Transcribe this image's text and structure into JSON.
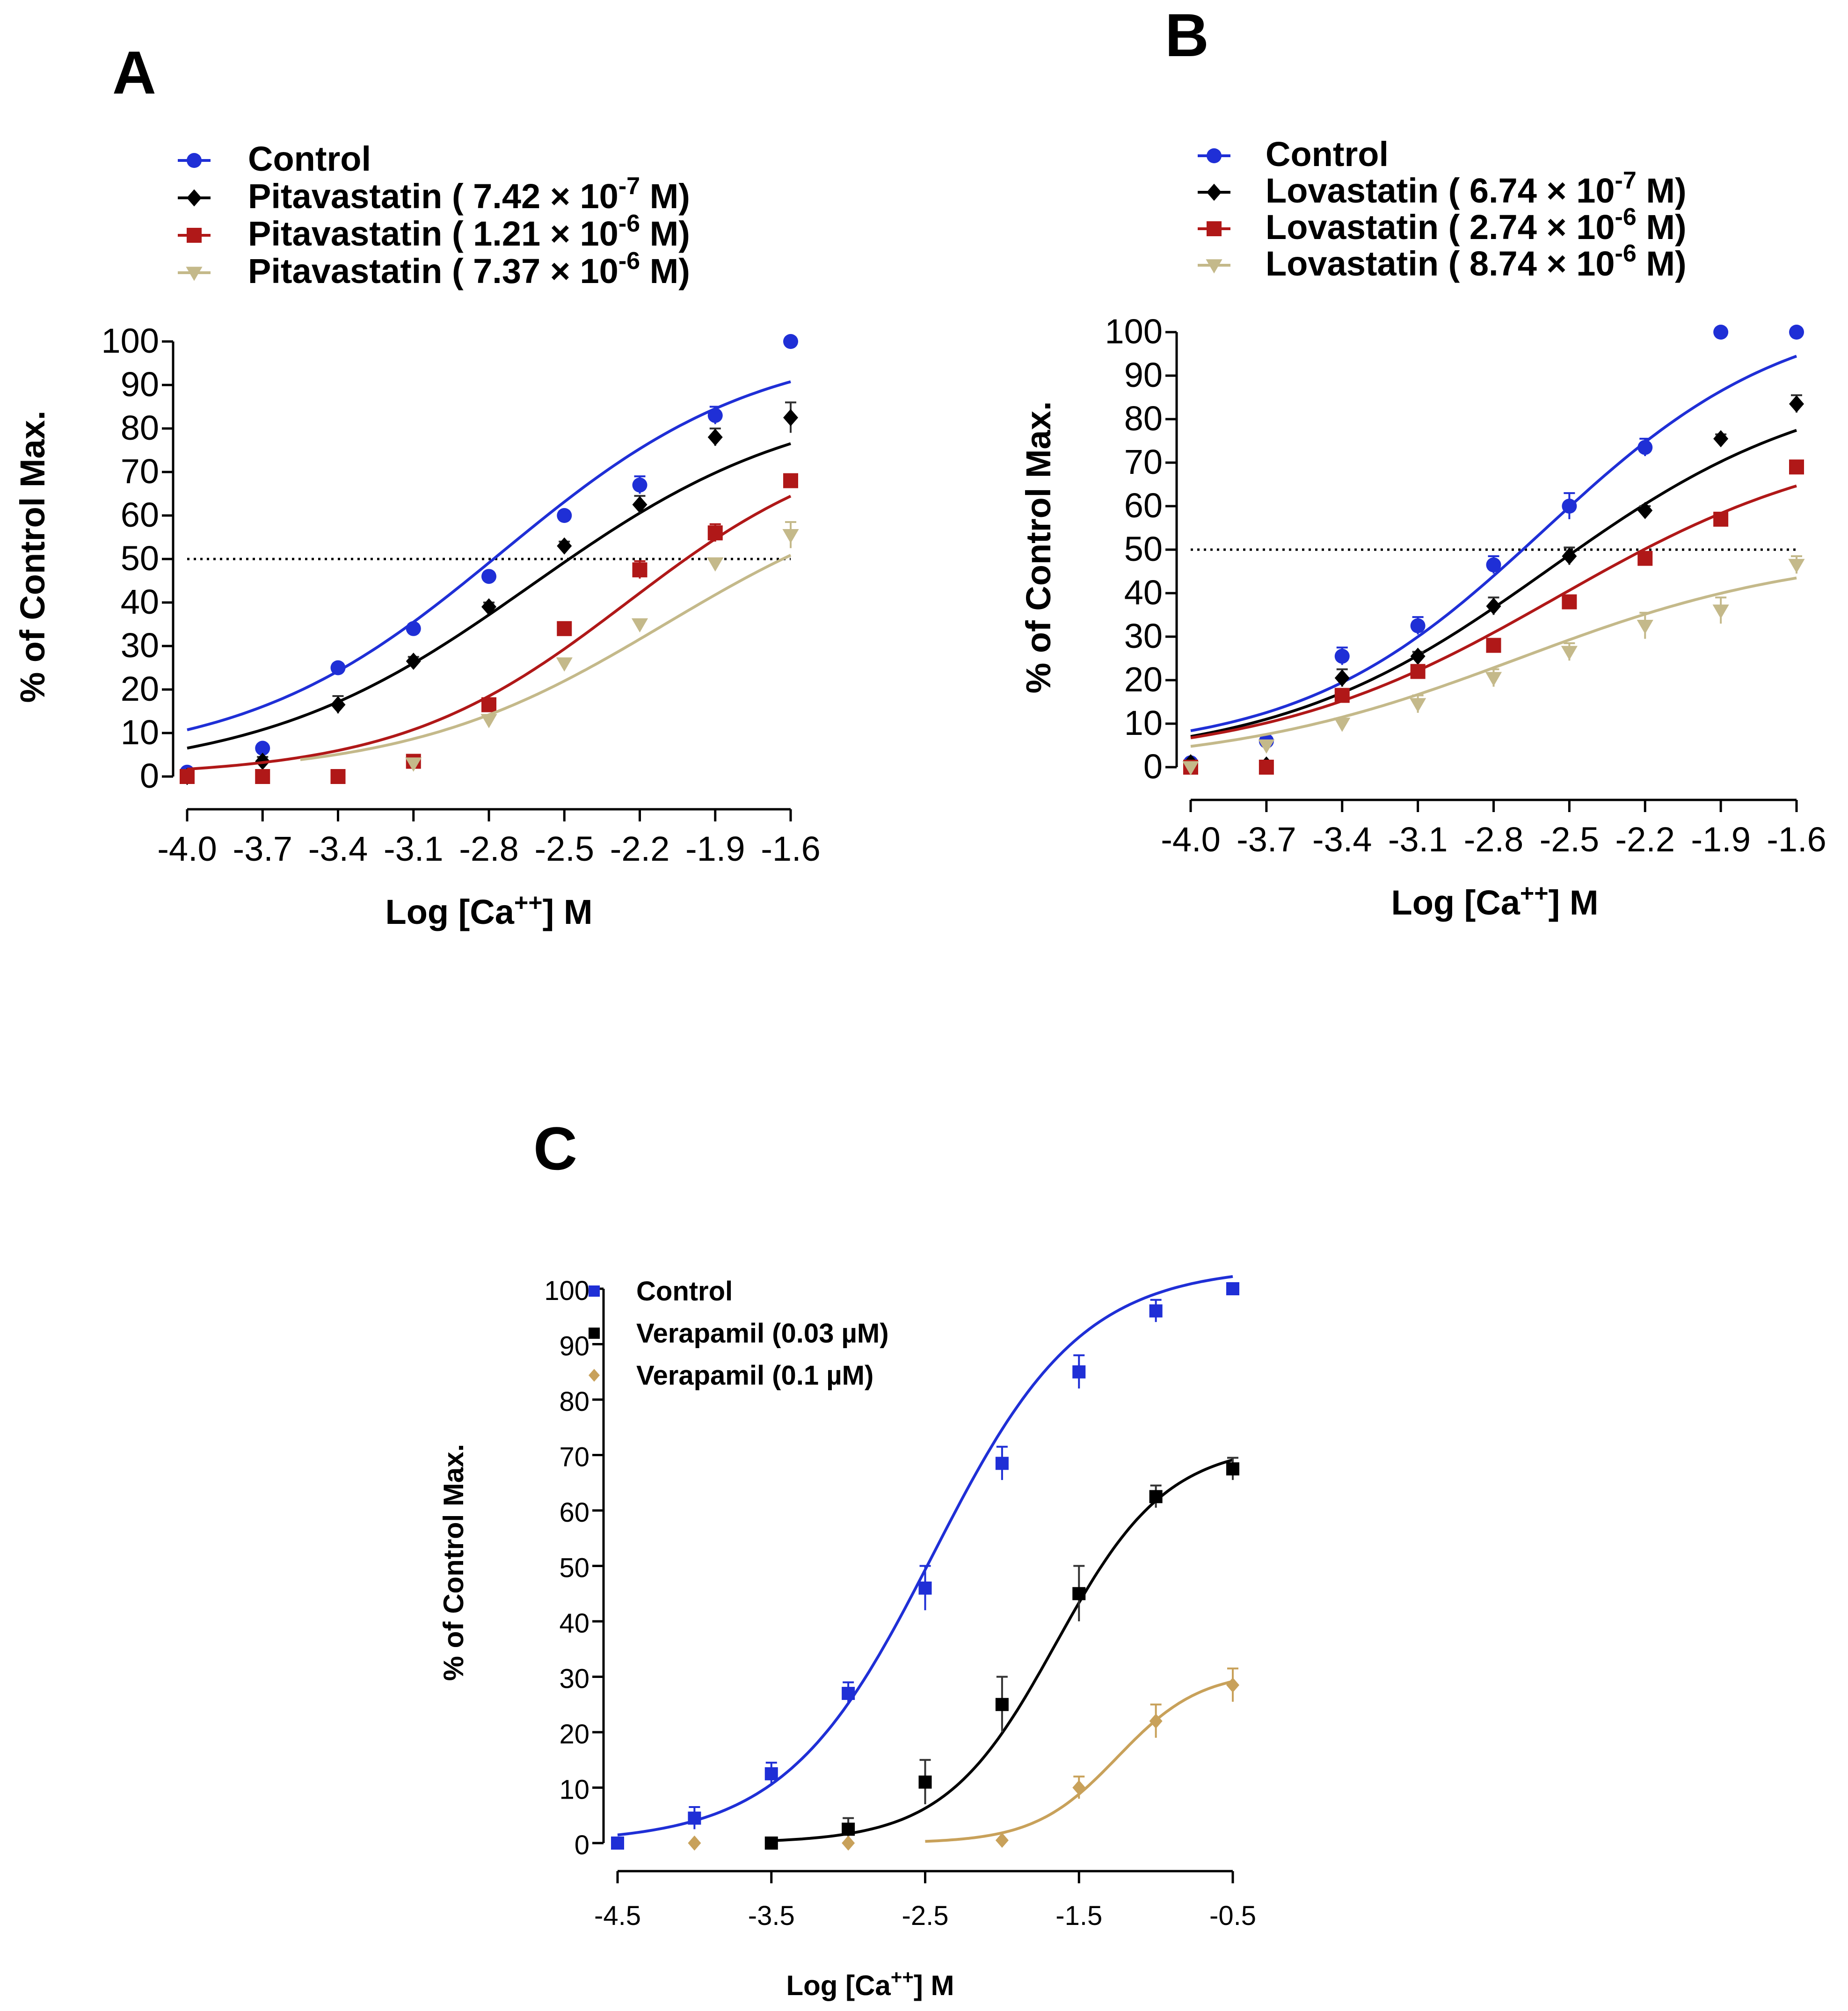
{
  "chart_data": [
    {
      "panel": "A",
      "type": "line",
      "x_ticks": [
        "-4.0",
        "-3.7",
        "-3.4",
        "-3.1",
        "-2.8",
        "-2.5",
        "-2.2",
        "-1.9",
        "-1.6"
      ],
      "x": [
        -4.0,
        -3.7,
        -3.4,
        -3.1,
        -2.8,
        -2.5,
        -2.2,
        -1.9,
        -1.6
      ],
      "xlim": [
        -4.0,
        -1.6
      ],
      "ylim": [
        0,
        100
      ],
      "y_ticks": [
        "0",
        "10",
        "20",
        "30",
        "40",
        "50",
        "60",
        "70",
        "80",
        "90",
        "100"
      ],
      "xlabel": "Log [Ca",
      "xlabel_sup": "++",
      "xlabel_tail": "] M",
      "ylabel": "% of Control Max.",
      "reference_line": 50,
      "series": [
        {
          "name": "Control",
          "legend_text": "Control",
          "color": "#1f2fd6",
          "marker": "circle",
          "values": [
            1,
            6.5,
            25,
            34,
            46,
            60,
            67,
            83,
            100
          ],
          "errors": [
            0,
            0,
            0,
            1,
            1,
            1,
            2,
            2,
            0
          ],
          "fit": {
            "bottom": 3,
            "top": 100,
            "ec50": -2.75,
            "hill": 0.85
          }
        },
        {
          "name": "Pitavastatin 7.42e-7 M",
          "legend_text": "Pitavastatin ( 7.42 × 10",
          "legend_exp": "-7",
          "legend_tail": " M)",
          "color": "#000000",
          "marker": "diamond",
          "values": [
            0,
            3.5,
            16.5,
            26.5,
            39,
            53,
            62.5,
            78,
            82.5
          ],
          "errors": [
            0,
            1,
            2,
            1,
            1,
            1,
            2,
            2,
            3.5
          ],
          "fit": {
            "bottom": 0,
            "top": 88,
            "ec50": -2.63,
            "hill": 0.8
          }
        },
        {
          "name": "Pitavastatin 1.21e-6 M",
          "legend_text": "Pitavastatin ( 1.21 × 10",
          "legend_exp": "-6",
          "legend_tail": " M)",
          "color": "#b01818",
          "marker": "square",
          "values": [
            0,
            0,
            0,
            3.5,
            16.5,
            34,
            47.5,
            56,
            68
          ],
          "errors": [
            0,
            0,
            0,
            1,
            1,
            1,
            2,
            2,
            1
          ],
          "fit": {
            "bottom": 0,
            "top": 80,
            "ec50": -2.25,
            "hill": 0.95
          }
        },
        {
          "name": "Pitavastatin 7.37e-6 M",
          "legend_text": "Pitavastatin ( 7.37 × 10",
          "legend_exp": "-6",
          "legend_tail": " M)",
          "color": "#c4b98a",
          "marker": "triangle-down",
          "values": [
            null,
            null,
            null,
            3,
            13,
            26,
            35,
            49,
            55.5
          ],
          "errors": [
            0,
            0,
            0,
            1,
            1,
            1,
            1,
            1,
            3
          ],
          "fit": {
            "bottom": 0,
            "top": 70,
            "ec50": -2.1,
            "hill": 0.85,
            "start": -3.55
          }
        }
      ]
    },
    {
      "panel": "B",
      "type": "line",
      "x_ticks": [
        "-4.0",
        "-3.7",
        "-3.4",
        "-3.1",
        "-2.8",
        "-2.5",
        "-2.2",
        "-1.9",
        "-1.6"
      ],
      "x": [
        -4.0,
        -3.7,
        -3.4,
        -3.1,
        -2.8,
        -2.5,
        -2.2,
        -1.9,
        -1.6
      ],
      "xlim": [
        -4.0,
        -1.6
      ],
      "ylim": [
        0,
        100
      ],
      "y_ticks": [
        "0",
        "10",
        "20",
        "30",
        "40",
        "50",
        "60",
        "70",
        "80",
        "90",
        "100"
      ],
      "xlabel": "Log [Ca",
      "xlabel_sup": "++",
      "xlabel_tail": "] M",
      "ylabel": "% of Control Max.",
      "reference_line": 50,
      "series": [
        {
          "name": "Control",
          "legend_text": "Control",
          "color": "#1f2fd6",
          "marker": "circle",
          "values": [
            1,
            6,
            25.5,
            32.5,
            46.5,
            60,
            73.5,
            100,
            100
          ],
          "errors": [
            0,
            0,
            2,
            2,
            2,
            3,
            2,
            0,
            0
          ],
          "fit": {
            "bottom": 3,
            "top": 106,
            "ec50": -2.6,
            "hill": 0.9
          }
        },
        {
          "name": "Lovastatin 6.74e-7 M",
          "legend_text": "Lovastatin ( 6.74 × 10",
          "legend_exp": "-7",
          "legend_tail": " M)",
          "color": "#000000",
          "marker": "diamond",
          "values": [
            1,
            0.5,
            20.5,
            25.5,
            37,
            48.5,
            59,
            75.5,
            83.5
          ],
          "errors": [
            0,
            0,
            2,
            1,
            2,
            2,
            1,
            1,
            2
          ],
          "fit": {
            "bottom": 1,
            "top": 90,
            "ec50": -2.58,
            "hill": 0.8
          }
        },
        {
          "name": "Lovastatin 2.74e-6 M",
          "legend_text": "Lovastatin ( 2.74 × 10",
          "legend_exp": "-6",
          "legend_tail": " M)",
          "color": "#b01818",
          "marker": "square",
          "values": [
            0,
            0,
            16.5,
            22,
            28,
            38,
            48,
            57,
            69
          ],
          "errors": [
            0,
            0,
            1,
            1,
            1,
            1,
            1,
            1,
            1
          ],
          "fit": {
            "bottom": 1,
            "top": 77,
            "ec50": -2.55,
            "hill": 0.75
          }
        },
        {
          "name": "Lovastatin 8.74e-6 M",
          "legend_text": "Lovastatin ( 8.74 × 10",
          "legend_exp": "-6",
          "legend_tail": " M)",
          "color": "#c4b98a",
          "marker": "triangle-down",
          "values": [
            0,
            5,
            10,
            14.5,
            20.5,
            26.5,
            32.5,
            36,
            46.5
          ],
          "errors": [
            0,
            0,
            1,
            2,
            2,
            2,
            3,
            3,
            2
          ],
          "fit": {
            "bottom": 0,
            "top": 50,
            "ec50": -2.7,
            "hill": 0.75
          }
        }
      ]
    },
    {
      "panel": "C",
      "type": "line",
      "x_ticks": [
        "-4.5",
        "-3.5",
        "-2.5",
        "-1.5",
        "-0.5"
      ],
      "x_tick_values": [
        -4.5,
        -3.5,
        -2.5,
        -1.5,
        -0.5
      ],
      "xlim": [
        -4.5,
        -0.5
      ],
      "ylim": [
        0,
        100
      ],
      "y_ticks": [
        "0",
        "10",
        "20",
        "30",
        "40",
        "50",
        "60",
        "70",
        "80",
        "90",
        "100"
      ],
      "xlabel": "Log [Ca",
      "xlabel_sup": "++",
      "xlabel_tail": "] M",
      "ylabel": "% of Control Max.",
      "series": [
        {
          "name": "Control",
          "legend_text": "Control",
          "color": "#1f2fd6",
          "marker": "square",
          "x": [
            -4.5,
            -4.0,
            -3.5,
            -3.0,
            -2.5,
            -2.0,
            -1.5,
            -1.0,
            -0.5
          ],
          "values": [
            0,
            4.5,
            12.5,
            27,
            46,
            68.5,
            85,
            96,
            100
          ],
          "errors": [
            0,
            2,
            2,
            2,
            4,
            3,
            3,
            2,
            0
          ],
          "fit": {
            "bottom": 0,
            "top": 104,
            "ec50": -2.45,
            "hill": 0.9,
            "start": -4.5
          }
        },
        {
          "name": "Verapamil (0.03 µM)",
          "legend_text": "Verapamil (0.03 µM)",
          "color": "#000000",
          "marker": "square",
          "x": [
            -3.5,
            -3.0,
            -2.5,
            -2.0,
            -1.5,
            -1.0,
            -0.5
          ],
          "values": [
            0,
            2.5,
            11,
            25,
            45,
            62.5,
            67.5
          ],
          "errors": [
            0,
            2,
            4,
            5,
            5,
            2,
            2
          ],
          "fit": {
            "bottom": 0,
            "top": 72,
            "ec50": -1.65,
            "hill": 1.2,
            "start": -3.5
          }
        },
        {
          "name": "Verapamil (0.1 µM)",
          "legend_text": "Verapamil (0.1 µM)",
          "color": "#c8a15a",
          "marker": "diamond",
          "x": [
            -4.0,
            -3.0,
            -2.0,
            -1.5,
            -1.0,
            -0.5
          ],
          "values": [
            0,
            0,
            0.5,
            10,
            22,
            28.5
          ],
          "errors": [
            0,
            0,
            0,
            2,
            3,
            3
          ],
          "fit": {
            "bottom": 0,
            "top": 31,
            "ec50": -1.25,
            "hill": 1.6,
            "start": -2.5
          }
        }
      ]
    }
  ]
}
